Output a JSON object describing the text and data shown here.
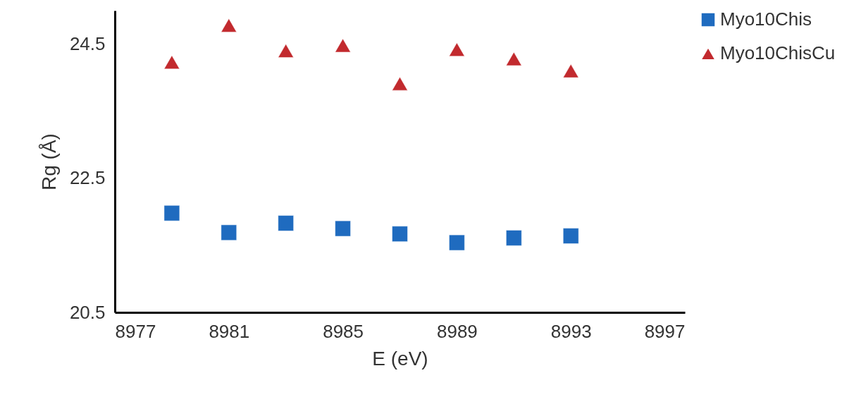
{
  "chart_data": {
    "type": "scatter",
    "xlabel": "E (eV)",
    "ylabel": "Rg (Å)",
    "x": [
      8979,
      8981,
      8983,
      8985,
      8987,
      8989,
      8991,
      8993
    ],
    "series": [
      {
        "name": "Myo10Chis",
        "color": "#1f6bbf",
        "marker": "square",
        "values": [
          21.98,
          21.69,
          21.83,
          21.75,
          21.67,
          21.54,
          21.61,
          21.64
        ]
      },
      {
        "name": "Myo10ChisCu",
        "color": "#c22a2e",
        "marker": "triangle",
        "values": [
          24.23,
          24.78,
          24.4,
          24.48,
          23.91,
          24.42,
          24.28,
          24.1
        ]
      }
    ],
    "xlim": [
      8977,
      8997
    ],
    "xticks": [
      8977,
      8981,
      8985,
      8989,
      8993,
      8997
    ],
    "ylim": [
      20.5,
      25
    ],
    "yticks": [
      20.5,
      22.5,
      24.5
    ],
    "grid": false,
    "legend": "right"
  }
}
